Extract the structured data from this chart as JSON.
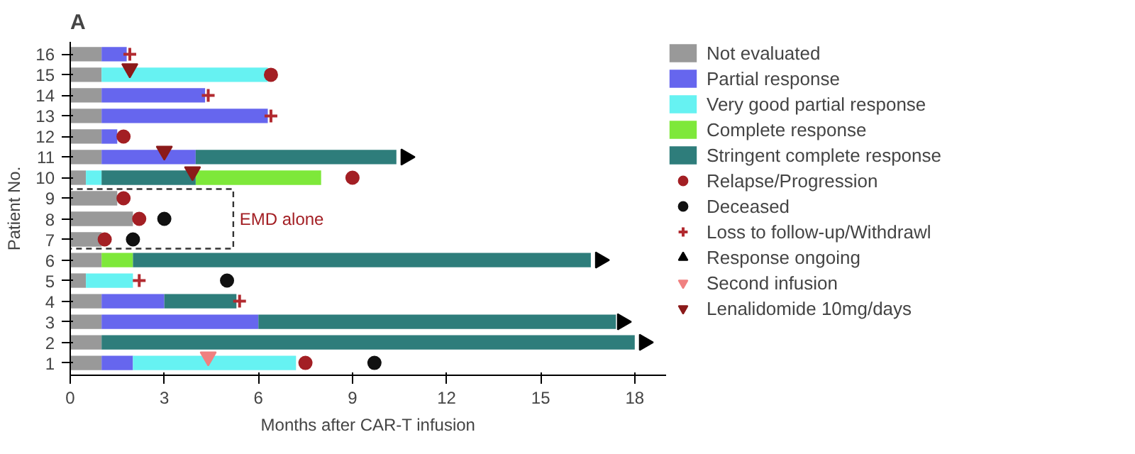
{
  "chart_data": {
    "type": "bar",
    "orientation": "horizontal",
    "title": "A",
    "xlabel": "Months after CAR-T infusion",
    "ylabel": "Patient No.",
    "categories": [
      "16",
      "15",
      "14",
      "13",
      "12",
      "11",
      "10",
      "9",
      "8",
      "7",
      "6",
      "5",
      "4",
      "3",
      "2",
      "1"
    ],
    "xlim": [
      0,
      19
    ],
    "xticks": [
      0,
      3,
      6,
      9,
      12,
      15,
      18
    ],
    "grid": false,
    "legend": "right",
    "annotations": [
      "EMD alone"
    ],
    "series": [
      {
        "name": "Not evaluated",
        "color": "#999999",
        "base": [
          0,
          0,
          0,
          0,
          0,
          0,
          0,
          0,
          0,
          0,
          0,
          0,
          0,
          0,
          0,
          0
        ],
        "values": [
          1,
          1,
          1,
          1,
          1,
          1,
          0.5,
          1.5,
          2,
          1,
          1,
          0.5,
          1,
          1,
          1,
          1
        ]
      },
      {
        "name": "Partial response",
        "color": "#6666ee",
        "base": [
          1,
          null,
          1,
          1,
          1,
          1,
          null,
          null,
          null,
          null,
          null,
          null,
          1,
          1,
          null,
          1
        ],
        "values": [
          0.8,
          null,
          3.3,
          5.3,
          0.5,
          3,
          null,
          null,
          null,
          null,
          null,
          null,
          2,
          5,
          null,
          1
        ]
      },
      {
        "name": "Very good partial response",
        "color": "#66f2f2",
        "base": [
          null,
          1,
          null,
          null,
          null,
          null,
          0.5,
          null,
          null,
          null,
          null,
          0.5,
          null,
          null,
          null,
          2
        ],
        "values": [
          null,
          5.3,
          null,
          null,
          null,
          null,
          0.5,
          null,
          null,
          null,
          null,
          1.5,
          null,
          null,
          null,
          5.2
        ]
      },
      {
        "name": "Complete response",
        "color": "#7ee83a",
        "base": [
          null,
          null,
          null,
          null,
          null,
          null,
          4,
          null,
          null,
          null,
          1,
          null,
          null,
          null,
          null,
          null
        ],
        "values": [
          null,
          null,
          null,
          null,
          null,
          null,
          4,
          null,
          null,
          null,
          1,
          null,
          null,
          null,
          null,
          null
        ]
      },
      {
        "name": "Stringent complete response",
        "color": "#2e7d7b",
        "base": [
          null,
          null,
          null,
          null,
          null,
          4,
          1,
          null,
          null,
          null,
          2,
          null,
          3,
          6,
          1,
          null
        ],
        "values": [
          null,
          null,
          null,
          null,
          null,
          6.4,
          3,
          null,
          null,
          null,
          14.6,
          null,
          2.3,
          11.4,
          17,
          null
        ]
      },
      {
        "name": "Relapse/Progression",
        "type": "scatter",
        "marker": "circle",
        "color": "#a31f24",
        "values": [
          null,
          6.4,
          null,
          null,
          1.7,
          null,
          9.0,
          1.7,
          2.2,
          1.1,
          null,
          null,
          null,
          null,
          null,
          7.5
        ]
      },
      {
        "name": "Deceased",
        "type": "scatter",
        "marker": "circle",
        "color": "#111111",
        "values": [
          null,
          null,
          null,
          null,
          null,
          null,
          null,
          null,
          3.0,
          2.0,
          null,
          5.0,
          null,
          null,
          null,
          9.7
        ]
      },
      {
        "name": "Loss to follow-up/Withdrawl",
        "type": "scatter",
        "marker": "cross",
        "color": "#b22a30",
        "values": [
          1.9,
          null,
          4.4,
          6.4,
          null,
          null,
          null,
          null,
          null,
          null,
          null,
          2.2,
          5.4,
          null,
          null,
          null
        ]
      },
      {
        "name": "Response ongoing",
        "type": "scatter",
        "marker": "triangle",
        "color": "#000000",
        "values": [
          null,
          null,
          null,
          null,
          null,
          10.7,
          null,
          null,
          null,
          null,
          16.9,
          null,
          null,
          17.6,
          18.3,
          null
        ]
      },
      {
        "name": "Second infusion",
        "type": "scatter",
        "marker": "triangle",
        "color": "#f08080",
        "values": [
          null,
          null,
          null,
          null,
          null,
          null,
          null,
          null,
          null,
          null,
          null,
          null,
          null,
          null,
          null,
          4.4
        ]
      },
      {
        "name": "Lenalidomide 10mg/days",
        "type": "scatter",
        "marker": "triangle",
        "color": "#8b1a1a",
        "values": [
          null,
          1.9,
          null,
          null,
          null,
          3.0,
          3.9,
          null,
          null,
          null,
          null,
          null,
          null,
          null,
          null,
          null
        ]
      }
    ]
  }
}
